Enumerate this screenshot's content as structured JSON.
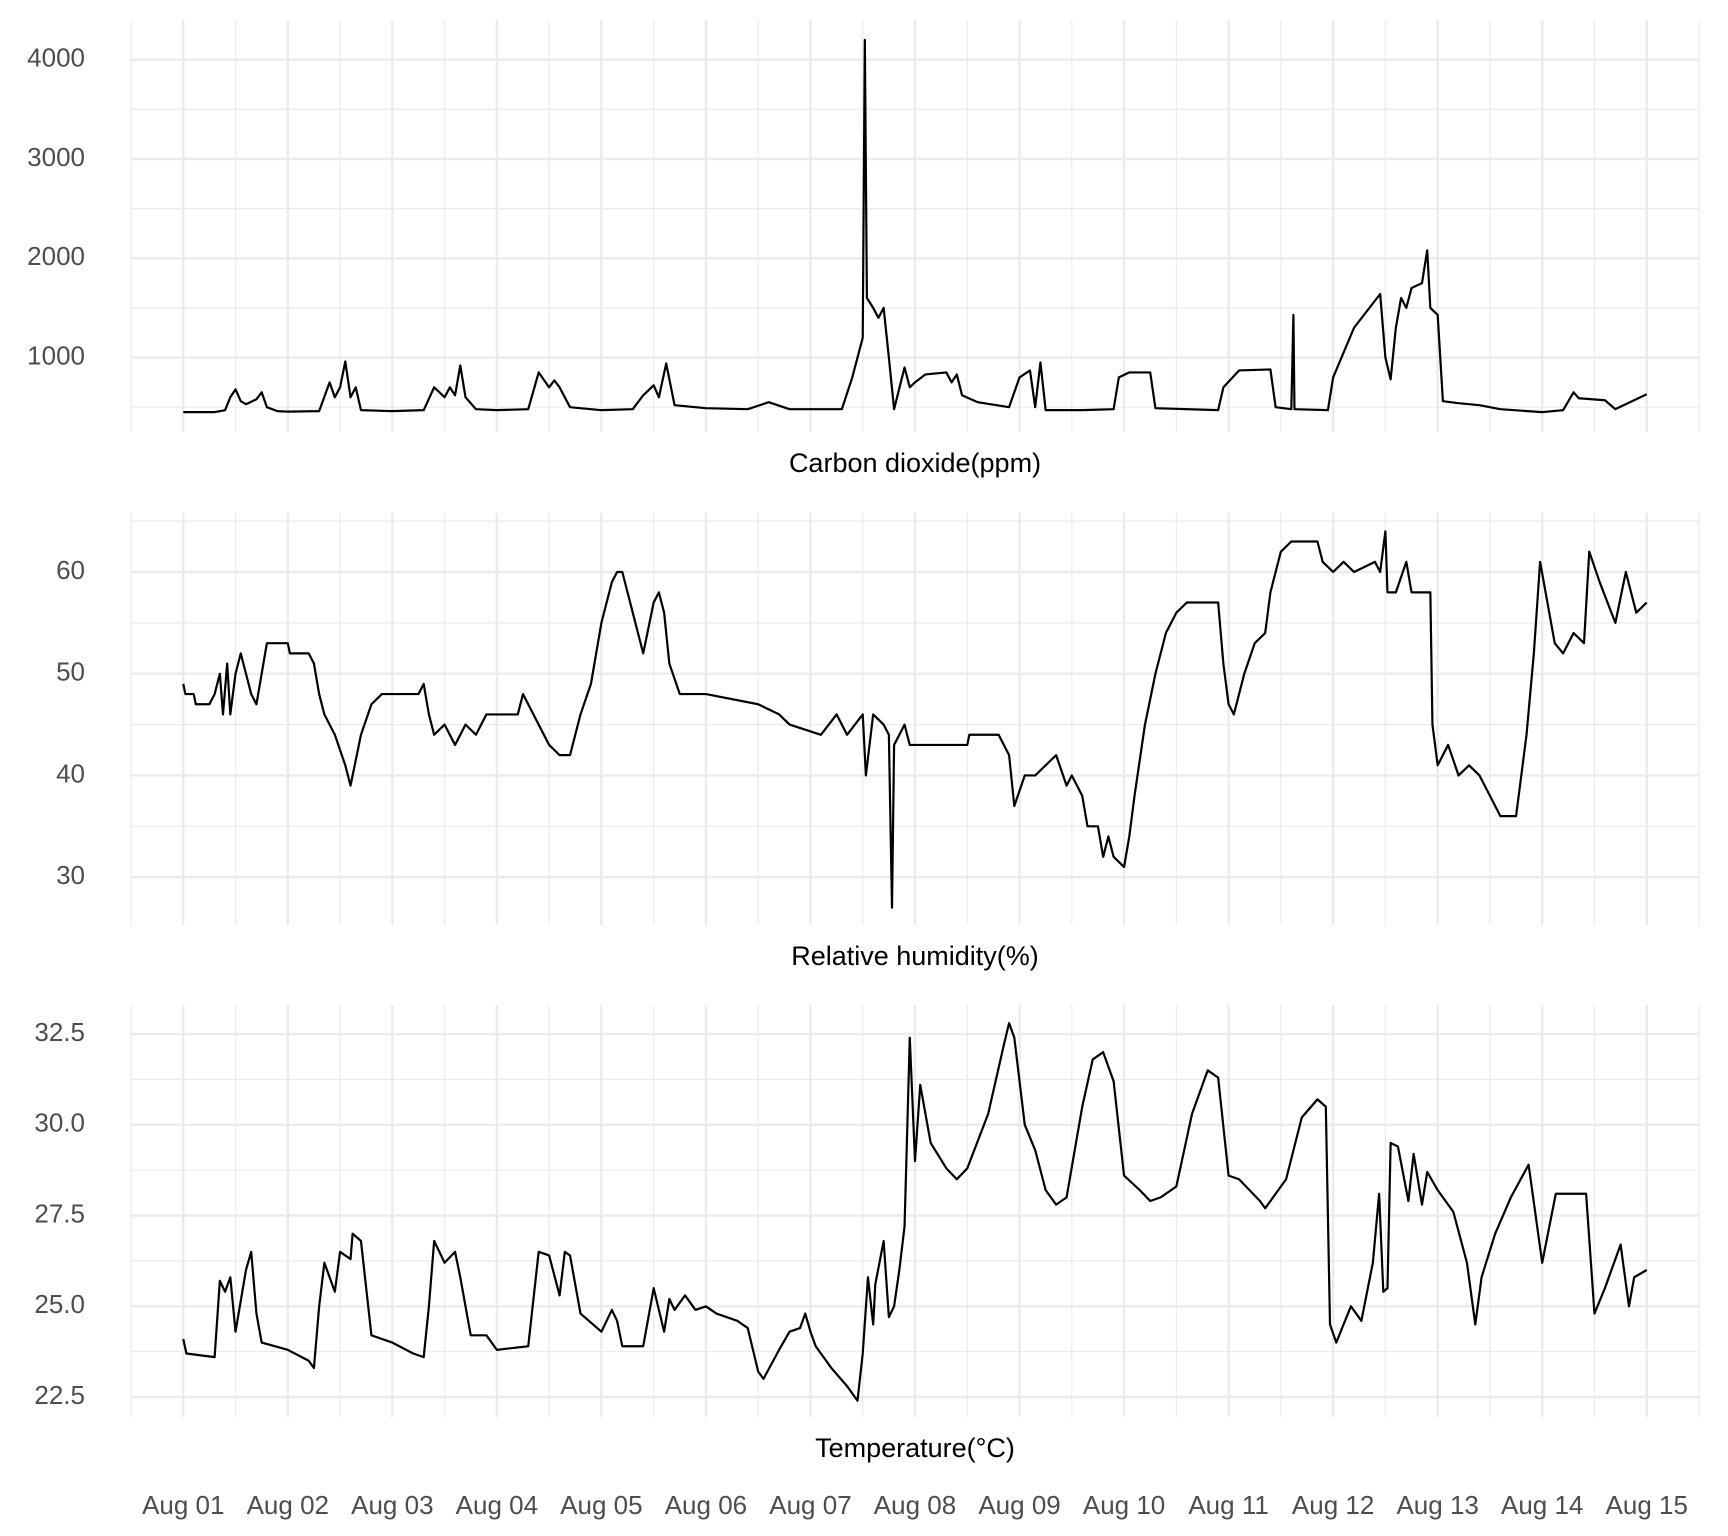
{
  "chart_data": [
    {
      "type": "line",
      "x_label": "Carbon dioxide(ppm)",
      "color": "#000000",
      "grid": true,
      "xlim": [
        0.5,
        15.5
      ],
      "xticks": [
        1,
        2,
        3,
        4,
        5,
        6,
        7,
        8,
        9,
        10,
        11,
        12,
        13,
        14,
        15
      ],
      "ylim": [
        250,
        4400
      ],
      "yticks": [
        1000,
        2000,
        3000,
        4000
      ],
      "x": [
        1.0,
        1.3,
        1.4,
        1.45,
        1.5,
        1.55,
        1.6,
        1.7,
        1.75,
        1.8,
        1.9,
        2.0,
        2.3,
        2.4,
        2.45,
        2.5,
        2.55,
        2.6,
        2.65,
        2.7,
        3.0,
        3.3,
        3.4,
        3.5,
        3.55,
        3.6,
        3.65,
        3.7,
        3.8,
        4.0,
        4.3,
        4.4,
        4.5,
        4.55,
        4.6,
        4.7,
        5.0,
        5.3,
        5.4,
        5.5,
        5.55,
        5.62,
        5.7,
        6.0,
        6.4,
        6.6,
        6.8,
        7.3,
        7.4,
        7.45,
        7.5,
        7.52,
        7.54,
        7.6,
        7.65,
        7.7,
        7.75,
        7.8,
        7.9,
        7.95,
        8.0,
        8.1,
        8.3,
        8.35,
        8.4,
        8.45,
        8.6,
        8.9,
        9.0,
        9.1,
        9.15,
        9.2,
        9.25,
        9.6,
        9.9,
        9.95,
        10.05,
        10.25,
        10.3,
        10.9,
        10.95,
        11.1,
        11.4,
        11.45,
        11.6,
        11.62,
        11.63,
        11.95,
        12.0,
        12.2,
        12.45,
        12.5,
        12.55,
        12.6,
        12.65,
        12.7,
        12.75,
        12.85,
        12.9,
        12.93,
        13.0,
        13.05,
        13.2,
        13.4,
        13.6,
        14.0,
        14.2,
        14.3,
        14.35,
        14.6,
        14.7,
        15.0
      ],
      "values": [
        450,
        450,
        470,
        600,
        680,
        560,
        530,
        580,
        650,
        500,
        460,
        455,
        460,
        750,
        600,
        700,
        960,
        600,
        700,
        470,
        460,
        470,
        700,
        600,
        700,
        620,
        920,
        600,
        480,
        470,
        480,
        850,
        700,
        770,
        700,
        500,
        470,
        480,
        620,
        720,
        600,
        940,
        520,
        490,
        480,
        550,
        480,
        480,
        800,
        1000,
        1200,
        4200,
        1600,
        1500,
        1400,
        1500,
        1000,
        480,
        900,
        700,
        750,
        830,
        850,
        750,
        830,
        620,
        550,
        500,
        800,
        870,
        500,
        950,
        470,
        470,
        480,
        800,
        850,
        850,
        490,
        470,
        700,
        870,
        880,
        500,
        480,
        1430,
        480,
        470,
        800,
        1300,
        1640,
        1000,
        780,
        1300,
        1600,
        1500,
        1700,
        1750,
        2080,
        1500,
        1430,
        560,
        540,
        520,
        480,
        450,
        470,
        650,
        590,
        570,
        480,
        630
      ]
    },
    {
      "type": "line",
      "x_label": "Relative humidity(%)",
      "color": "#000000",
      "grid": true,
      "xlim": [
        0.5,
        15.5
      ],
      "xticks": [
        1,
        2,
        3,
        4,
        5,
        6,
        7,
        8,
        9,
        10,
        11,
        12,
        13,
        14,
        15
      ],
      "ylim": [
        25.3,
        65.8
      ],
      "yticks": [
        30,
        40,
        50,
        60
      ],
      "x": [
        1.0,
        1.02,
        1.1,
        1.12,
        1.25,
        1.3,
        1.35,
        1.38,
        1.42,
        1.45,
        1.5,
        1.55,
        1.6,
        1.65,
        1.7,
        1.75,
        1.8,
        2.0,
        2.02,
        2.2,
        2.25,
        2.3,
        2.35,
        2.45,
        2.55,
        2.6,
        2.7,
        2.8,
        2.9,
        3.25,
        3.3,
        3.35,
        3.4,
        3.5,
        3.6,
        3.7,
        3.8,
        3.9,
        4.2,
        4.25,
        4.3,
        4.4,
        4.5,
        4.6,
        4.7,
        4.8,
        4.9,
        5.0,
        5.1,
        5.15,
        5.2,
        5.3,
        5.4,
        5.5,
        5.55,
        5.6,
        5.65,
        5.75,
        6.0,
        6.5,
        6.7,
        6.8,
        7.1,
        7.25,
        7.35,
        7.5,
        7.53,
        7.6,
        7.7,
        7.75,
        7.78,
        7.8,
        7.9,
        7.95,
        8.5,
        8.52,
        8.8,
        8.9,
        8.95,
        9.05,
        9.15,
        9.25,
        9.35,
        9.45,
        9.5,
        9.6,
        9.65,
        9.75,
        9.8,
        9.85,
        9.9,
        10.0,
        10.05,
        10.1,
        10.2,
        10.3,
        10.4,
        10.5,
        10.6,
        10.9,
        10.95,
        11.0,
        11.05,
        11.15,
        11.25,
        11.35,
        11.4,
        11.5,
        11.6,
        11.85,
        11.9,
        12.0,
        12.1,
        12.2,
        12.4,
        12.45,
        12.5,
        12.52,
        12.6,
        12.7,
        12.75,
        12.93,
        12.95,
        13.0,
        13.05,
        13.1,
        13.2,
        13.3,
        13.4,
        13.5,
        13.6,
        13.75,
        13.85,
        13.92,
        13.98,
        14.05,
        14.12,
        14.2,
        14.3,
        14.4,
        14.45,
        14.55,
        14.7,
        14.8,
        14.9,
        15.0
      ],
      "values": [
        49,
        48,
        48,
        47,
        47,
        48,
        50,
        46,
        51,
        46,
        50,
        52,
        50,
        48,
        47,
        50,
        53,
        53,
        52,
        52,
        51,
        48,
        46,
        44,
        41,
        39,
        44,
        47,
        48,
        48,
        49,
        46,
        44,
        45,
        43,
        45,
        44,
        46,
        46,
        48,
        47,
        45,
        43,
        42,
        42,
        46,
        49,
        55,
        59,
        60,
        60,
        56,
        52,
        57,
        58,
        56,
        51,
        48,
        48,
        47,
        46,
        45,
        44,
        46,
        44,
        46,
        40,
        46,
        45,
        44,
        27,
        43,
        45,
        43,
        43,
        44,
        44,
        42,
        37,
        40,
        40,
        41,
        42,
        39,
        40,
        38,
        35,
        35,
        32,
        34,
        32,
        31,
        34,
        38,
        45,
        50,
        54,
        56,
        57,
        57,
        51,
        47,
        46,
        50,
        53,
        54,
        58,
        62,
        63,
        63,
        61,
        60,
        61,
        60,
        61,
        60,
        64,
        58,
        58,
        61,
        58,
        58,
        45,
        41,
        42,
        43,
        40,
        41,
        40,
        38,
        36,
        36,
        44,
        52,
        61,
        57,
        53,
        52,
        54,
        53,
        62,
        59,
        55,
        60,
        56,
        57
      ]
    },
    {
      "type": "line",
      "x_label": "Temperature(°C)",
      "color": "#000000",
      "grid": true,
      "xlim": [
        0.5,
        15.5
      ],
      "xticks": [
        {
          "value": 1,
          "label": "Aug 01"
        },
        {
          "value": 2,
          "label": "Aug 02"
        },
        {
          "value": 3,
          "label": "Aug 03"
        },
        {
          "value": 4,
          "label": "Aug 04"
        },
        {
          "value": 5,
          "label": "Aug 05"
        },
        {
          "value": 6,
          "label": "Aug 06"
        },
        {
          "value": 7,
          "label": "Aug 07"
        },
        {
          "value": 8,
          "label": "Aug 08"
        },
        {
          "value": 9,
          "label": "Aug 09"
        },
        {
          "value": 10,
          "label": "Aug 10"
        },
        {
          "value": 11,
          "label": "Aug 11"
        },
        {
          "value": 12,
          "label": "Aug 12"
        },
        {
          "value": 13,
          "label": "Aug 13"
        },
        {
          "value": 14,
          "label": "Aug 14"
        },
        {
          "value": 15,
          "label": "Aug 15"
        }
      ],
      "ylim": [
        21.95,
        33.3
      ],
      "yticks": [
        22.5,
        {
          "value": 25,
          "label": "25.0"
        },
        27.5,
        {
          "value": 30,
          "label": "30.0"
        },
        32.5
      ],
      "x": [
        1.0,
        1.03,
        1.3,
        1.35,
        1.4,
        1.45,
        1.5,
        1.6,
        1.65,
        1.7,
        1.75,
        2.0,
        2.2,
        2.25,
        2.3,
        2.35,
        2.45,
        2.5,
        2.6,
        2.62,
        2.7,
        2.8,
        3.0,
        3.2,
        3.3,
        3.35,
        3.4,
        3.5,
        3.6,
        3.65,
        3.75,
        3.9,
        4.0,
        4.3,
        4.4,
        4.5,
        4.6,
        4.65,
        4.7,
        4.8,
        5.0,
        5.1,
        5.15,
        5.2,
        5.4,
        5.45,
        5.5,
        5.6,
        5.65,
        5.7,
        5.8,
        5.9,
        6.0,
        6.1,
        6.3,
        6.4,
        6.5,
        6.55,
        6.7,
        6.8,
        6.9,
        6.95,
        7.0,
        7.05,
        7.2,
        7.35,
        7.45,
        7.5,
        7.55,
        7.6,
        7.62,
        7.7,
        7.75,
        7.8,
        7.85,
        7.9,
        7.95,
        8.0,
        8.05,
        8.15,
        8.3,
        8.4,
        8.5,
        8.7,
        8.85,
        8.9,
        8.95,
        9.05,
        9.15,
        9.25,
        9.35,
        9.45,
        9.6,
        9.7,
        9.8,
        9.9,
        10.0,
        10.15,
        10.25,
        10.35,
        10.5,
        10.65,
        10.8,
        10.9,
        11.0,
        11.1,
        11.3,
        11.35,
        11.55,
        11.7,
        11.85,
        11.93,
        11.97,
        12.03,
        12.17,
        12.27,
        12.38,
        12.44,
        12.48,
        12.52,
        12.55,
        12.62,
        12.72,
        12.77,
        12.85,
        12.9,
        13.0,
        13.15,
        13.28,
        13.36,
        13.42,
        13.55,
        13.7,
        13.87,
        14.0,
        14.13,
        14.42,
        14.5,
        14.6,
        14.75,
        14.83,
        14.88,
        15.0
      ],
      "values": [
        24.1,
        23.7,
        23.6,
        25.7,
        25.4,
        25.8,
        24.3,
        26.0,
        26.5,
        24.8,
        24.0,
        23.8,
        23.5,
        23.3,
        25.0,
        26.2,
        25.4,
        26.5,
        26.3,
        27.0,
        26.8,
        24.2,
        24.0,
        23.7,
        23.6,
        25.0,
        26.8,
        26.2,
        26.5,
        25.8,
        24.2,
        24.2,
        23.8,
        23.9,
        26.5,
        26.4,
        25.3,
        26.5,
        26.4,
        24.8,
        24.3,
        24.9,
        24.6,
        23.9,
        23.9,
        24.7,
        25.5,
        24.3,
        25.2,
        24.9,
        25.3,
        24.9,
        25.0,
        24.8,
        24.6,
        24.4,
        23.2,
        23.0,
        23.8,
        24.3,
        24.4,
        24.8,
        24.3,
        23.9,
        23.3,
        22.8,
        22.4,
        23.7,
        25.8,
        24.5,
        25.6,
        26.8,
        24.7,
        25.0,
        26.0,
        27.2,
        32.4,
        29.0,
        31.1,
        29.5,
        28.8,
        28.5,
        28.8,
        30.3,
        32.2,
        32.8,
        32.4,
        30.0,
        29.3,
        28.2,
        27.8,
        28.0,
        30.5,
        31.8,
        32.0,
        31.2,
        28.6,
        28.2,
        27.9,
        28.0,
        28.3,
        30.3,
        31.5,
        31.3,
        28.6,
        28.5,
        27.9,
        27.7,
        28.5,
        30.2,
        30.7,
        30.5,
        24.5,
        24.0,
        25.0,
        24.6,
        26.2,
        28.1,
        25.4,
        25.5,
        29.5,
        29.4,
        27.9,
        29.2,
        27.8,
        28.7,
        28.2,
        27.6,
        26.2,
        24.5,
        25.8,
        27.0,
        28.0,
        28.9,
        26.2,
        28.1,
        28.1,
        24.8,
        25.5,
        26.7,
        25.0,
        25.8,
        26.0
      ]
    }
  ]
}
